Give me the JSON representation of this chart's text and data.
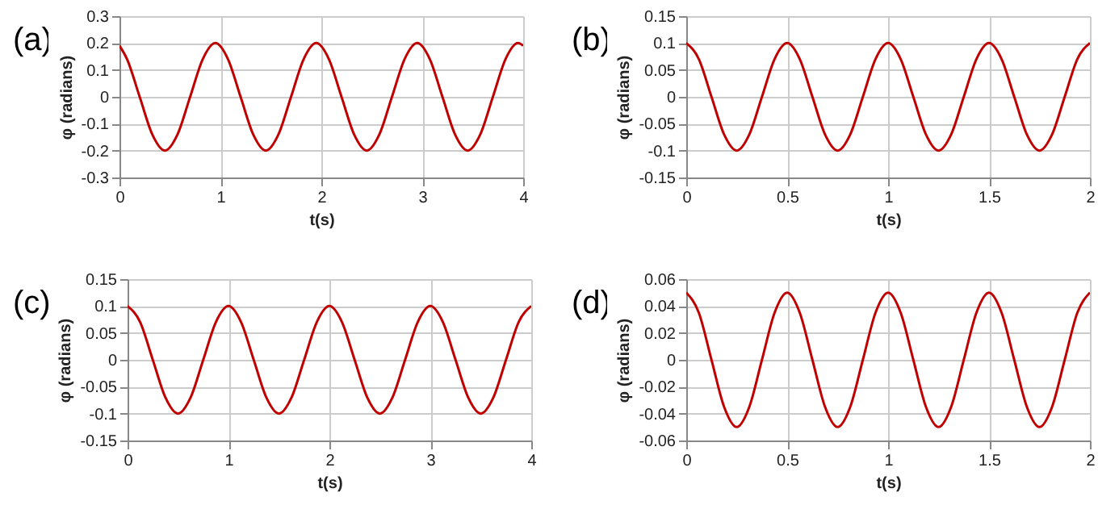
{
  "chart_data": [
    {
      "type": "line",
      "annotations": [
        "(a)"
      ],
      "xlabel": "t(s)",
      "ylabel": "φ (radians)",
      "xlim": [
        0,
        4
      ],
      "xticks": [
        0,
        1,
        2,
        3,
        4
      ],
      "ylim": [
        -0.3,
        0.3
      ],
      "yticks": [
        -0.3,
        -0.2,
        -0.1,
        0,
        0.1,
        0.2,
        0.3
      ],
      "grid": true,
      "x": [
        0,
        0.075,
        0.2,
        0.325,
        0.45,
        0.575,
        0.7,
        0.825,
        0.95,
        1.075,
        1.2,
        1.325,
        1.45,
        1.575,
        1.7,
        1.825,
        1.95,
        2.075,
        2.2,
        2.325,
        2.45,
        2.575,
        2.7,
        2.825,
        2.95,
        3.075,
        3.2,
        3.325,
        3.45,
        3.575,
        3.7,
        3.825,
        3.95,
        4
      ],
      "series": [
        {
          "color": "#c00000",
          "values": [
            0.19,
            0.14,
            0,
            -0.14,
            -0.2,
            -0.14,
            0,
            0.14,
            0.2,
            0.14,
            0,
            -0.14,
            -0.2,
            -0.14,
            0,
            0.14,
            0.2,
            0.14,
            0,
            -0.14,
            -0.2,
            -0.14,
            0,
            0.14,
            0.2,
            0.14,
            0,
            -0.14,
            -0.2,
            -0.14,
            0,
            0.14,
            0.2,
            0.19
          ]
        }
      ]
    },
    {
      "type": "line",
      "annotations": [
        "(b)"
      ],
      "xlabel": "t(s)",
      "ylabel": "φ (radians)",
      "xlim": [
        0,
        2
      ],
      "xticks": [
        0,
        0.5,
        1,
        1.5,
        2
      ],
      "ylim": [
        -0.15,
        0.15
      ],
      "yticks": [
        -0.15,
        -0.1,
        -0.05,
        0,
        0.05,
        0.1,
        0.15
      ],
      "grid": true,
      "x": [
        0,
        0.0625,
        0.125,
        0.1875,
        0.25,
        0.3125,
        0.375,
        0.4375,
        0.5,
        0.5625,
        0.625,
        0.6875,
        0.75,
        0.8125,
        0.875,
        0.9375,
        1,
        1.0625,
        1.125,
        1.1875,
        1.25,
        1.3125,
        1.375,
        1.4375,
        1.5,
        1.5625,
        1.625,
        1.6875,
        1.75,
        1.8125,
        1.875,
        1.9375,
        2
      ],
      "series": [
        {
          "color": "#c00000",
          "values": [
            0.1,
            0.07,
            0,
            -0.07,
            -0.1,
            -0.07,
            0,
            0.07,
            0.1,
            0.07,
            0,
            -0.07,
            -0.1,
            -0.07,
            0,
            0.07,
            0.1,
            0.07,
            0,
            -0.07,
            -0.1,
            -0.07,
            0,
            0.07,
            0.1,
            0.07,
            0,
            -0.07,
            -0.1,
            -0.07,
            0,
            0.07,
            0.1
          ]
        }
      ]
    },
    {
      "type": "line",
      "annotations": [
        "(c)"
      ],
      "xlabel": "t(s)",
      "ylabel": "φ (radians)",
      "xlim": [
        0,
        4
      ],
      "xticks": [
        0,
        1,
        2,
        3,
        4
      ],
      "ylim": [
        -0.15,
        0.15
      ],
      "yticks": [
        -0.15,
        -0.1,
        -0.05,
        0,
        0.05,
        0.1,
        0.15
      ],
      "grid": true,
      "x": [
        0,
        0.125,
        0.25,
        0.375,
        0.5,
        0.625,
        0.75,
        0.875,
        1,
        1.125,
        1.25,
        1.375,
        1.5,
        1.625,
        1.75,
        1.875,
        2,
        2.125,
        2.25,
        2.375,
        2.5,
        2.625,
        2.75,
        2.875,
        3,
        3.125,
        3.25,
        3.375,
        3.5,
        3.625,
        3.75,
        3.875,
        4
      ],
      "series": [
        {
          "color": "#c00000",
          "values": [
            0.1,
            0.07,
            0,
            -0.07,
            -0.1,
            -0.07,
            0,
            0.07,
            0.1,
            0.07,
            0,
            -0.07,
            -0.1,
            -0.07,
            0,
            0.07,
            0.1,
            0.07,
            0,
            -0.07,
            -0.1,
            -0.07,
            0,
            0.07,
            0.1,
            0.07,
            0,
            -0.07,
            -0.1,
            -0.07,
            0,
            0.07,
            0.1
          ]
        }
      ]
    },
    {
      "type": "line",
      "annotations": [
        "(d)"
      ],
      "xlabel": "t(s)",
      "ylabel": "φ (radians)",
      "xlim": [
        0,
        2
      ],
      "xticks": [
        0,
        0.5,
        1,
        1.5,
        2
      ],
      "ylim": [
        -0.06,
        0.06
      ],
      "yticks": [
        -0.06,
        -0.04,
        -0.02,
        0,
        0.02,
        0.04,
        0.06
      ],
      "grid": true,
      "x": [
        0,
        0.0625,
        0.125,
        0.1875,
        0.25,
        0.3125,
        0.375,
        0.4375,
        0.5,
        0.5625,
        0.625,
        0.6875,
        0.75,
        0.8125,
        0.875,
        0.9375,
        1,
        1.0625,
        1.125,
        1.1875,
        1.25,
        1.3125,
        1.375,
        1.4375,
        1.5,
        1.5625,
        1.625,
        1.6875,
        1.75,
        1.8125,
        1.875,
        1.9375,
        2
      ],
      "series": [
        {
          "color": "#c00000",
          "values": [
            0.05,
            0.035,
            0,
            -0.035,
            -0.05,
            -0.035,
            0,
            0.035,
            0.05,
            0.035,
            0,
            -0.035,
            -0.05,
            -0.035,
            0,
            0.035,
            0.05,
            0.035,
            0,
            -0.035,
            -0.05,
            -0.035,
            0,
            0.035,
            0.05,
            0.035,
            0,
            -0.035,
            -0.05,
            -0.035,
            0,
            0.035,
            0.05
          ]
        }
      ]
    }
  ]
}
